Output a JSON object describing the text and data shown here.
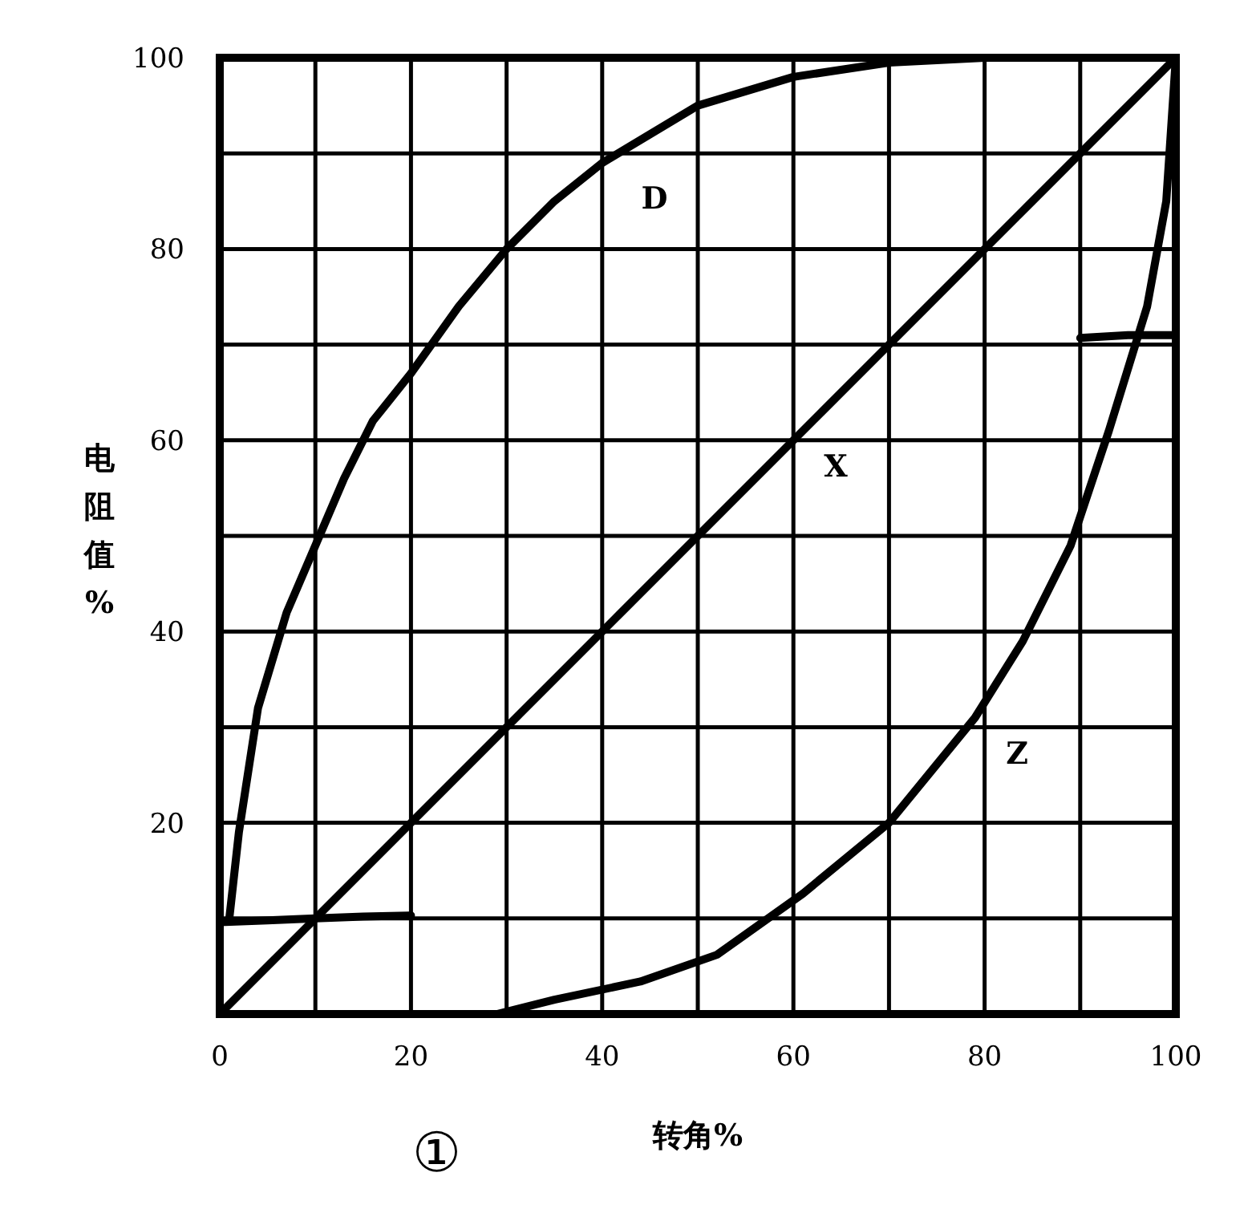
{
  "chart_data": {
    "type": "line",
    "xlabel": "转角%",
    "ylabel": "电阻值%",
    "xlim": [
      0,
      100
    ],
    "ylim": [
      0,
      100
    ],
    "xticks": [
      0,
      {
        "value": 10,
        "label": null
      },
      20,
      {
        "value": 30,
        "label": null
      },
      40,
      {
        "value": 50,
        "label": null
      },
      60,
      {
        "value": 70,
        "label": null
      },
      80,
      {
        "value": 90,
        "label": null
      },
      100
    ],
    "yticks": [
      {
        "value": 0,
        "label": null
      },
      {
        "value": 10,
        "label": null
      },
      20,
      {
        "value": 30,
        "label": null
      },
      40,
      {
        "value": 50,
        "label": null
      },
      60,
      {
        "value": 70,
        "label": null
      },
      80,
      {
        "value": 90,
        "label": null
      },
      100
    ],
    "grid": true,
    "series": [
      {
        "color": "#000000",
        "x": [
          1,
          2,
          4,
          7,
          10,
          13,
          16,
          20,
          25,
          30,
          35,
          40,
          45,
          50,
          60,
          70,
          80
        ],
        "values": [
          10,
          19,
          32,
          42,
          49,
          56,
          62,
          67,
          74,
          80,
          85,
          89,
          92,
          95,
          98,
          99.5,
          100
        ]
      },
      {
        "color": "#000000",
        "x": [
          0,
          100
        ],
        "values": [
          0,
          100
        ]
      },
      {
        "color": "#000000",
        "x": [
          0,
          10,
          20,
          29,
          35,
          44,
          52,
          61,
          70,
          79,
          84,
          89,
          93,
          97,
          99,
          100
        ],
        "values": [
          0,
          0,
          0,
          0,
          1.5,
          3.4,
          6.2,
          12.6,
          20,
          31,
          39,
          49,
          61,
          74,
          85,
          100
        ]
      },
      {
        "color": "#000000",
        "x": [
          0,
          5,
          10,
          15,
          20
        ],
        "values": [
          9.6,
          9.8,
          10,
          10.2,
          10.3
        ]
      },
      {
        "color": "#000000",
        "x": [
          90,
          95,
          100
        ],
        "values": [
          70.7,
          71,
          71
        ]
      }
    ],
    "annotations": [
      "D",
      "X",
      "Z",
      "①"
    ]
  }
}
